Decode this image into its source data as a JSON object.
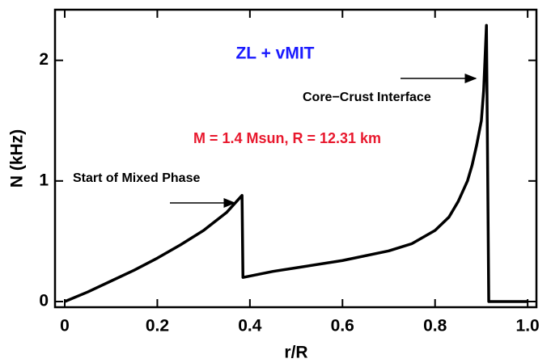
{
  "chart_data": {
    "type": "line",
    "xlabel": "r/R",
    "ylabel": "N (kHz)",
    "annotations": [
      {
        "text": "ZL + vMIT",
        "color": "#1a1aff"
      },
      {
        "text": "M = 1.4 Msun, R = 12.31 km",
        "color": "#e8182d"
      },
      {
        "text": "Start of Mixed Phase",
        "color": "#000000"
      },
      {
        "text": "Core−Crust Interface",
        "color": "#000000"
      }
    ],
    "series": [
      {
        "color": "#000000",
        "x": [
          0,
          0.05,
          0.1,
          0.15,
          0.2,
          0.25,
          0.3,
          0.35,
          0.383,
          0.385,
          0.45,
          0.5,
          0.6,
          0.7,
          0.75,
          0.8,
          0.83,
          0.85,
          0.87,
          0.88,
          0.89,
          0.9,
          0.905,
          0.911,
          0.916,
          0.93,
          1.0
        ],
        "values": [
          0,
          0.08,
          0.17,
          0.26,
          0.36,
          0.47,
          0.59,
          0.74,
          0.88,
          0.2,
          0.25,
          0.28,
          0.34,
          0.42,
          0.48,
          0.59,
          0.7,
          0.83,
          1.0,
          1.13,
          1.3,
          1.5,
          1.75,
          2.29,
          0,
          0,
          0
        ]
      }
    ],
    "xlim": [
      -0.021,
      1.019
    ],
    "ylim": [
      -0.047,
      2.42
    ],
    "xticks": [
      0,
      0.2,
      0.4,
      0.6,
      0.8,
      {
        "value": 1.0,
        "label": "1.0"
      }
    ],
    "yticks": [
      0,
      1,
      2
    ]
  }
}
